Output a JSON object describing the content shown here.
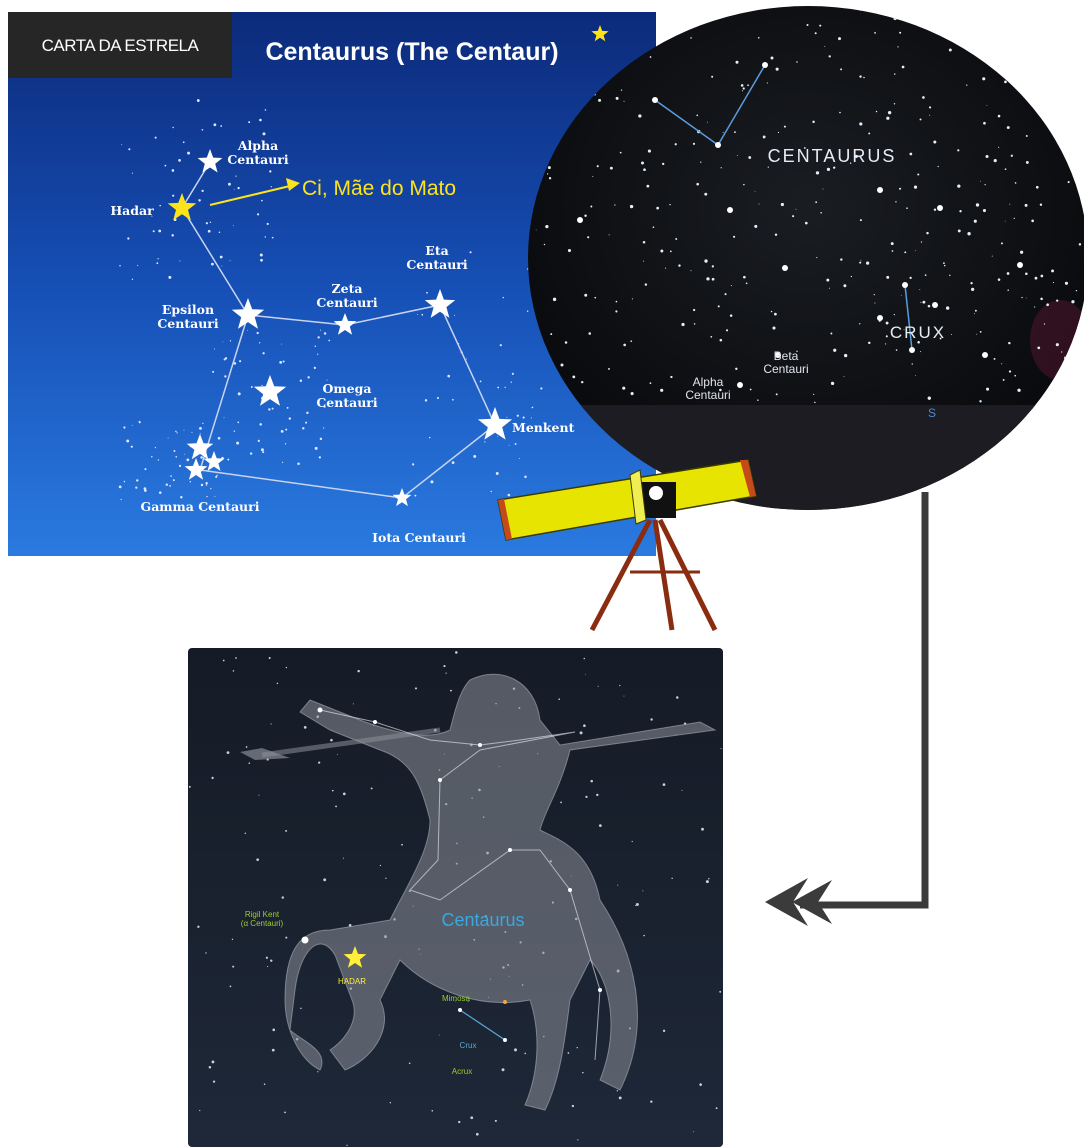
{
  "header": {
    "badge": "CARTA DA ESTRELA",
    "title": "Centaurus (The Centaur)"
  },
  "star_chart": {
    "callout": "Ci, Mãe do Mato",
    "labels": [
      [
        "Alpha",
        "Centauri"
      ],
      [
        "Hadar"
      ],
      [
        "Eta",
        "Centauri"
      ],
      [
        "Zeta",
        "Centauri"
      ],
      [
        "Epsilon",
        "Centauri"
      ],
      [
        "Omega",
        "Centauri"
      ],
      [
        "Menkent"
      ],
      [
        "Gamma Centauri"
      ],
      [
        "Iota Centauri"
      ]
    ]
  },
  "sky_view": {
    "labels": [
      [
        "CENTAURUS"
      ],
      [
        "CRUX"
      ],
      [
        "Beta",
        "Centauri"
      ],
      [
        "Alpha",
        "Centauri"
      ],
      [
        "S"
      ]
    ]
  },
  "figure": {
    "title": "Centaurus",
    "labels": [
      [
        "Rigil Kent",
        "(α Centauri)"
      ],
      [
        "HADAR"
      ],
      [
        "Mimosa"
      ],
      [
        "Crux"
      ],
      [
        "Acrux"
      ]
    ]
  }
}
